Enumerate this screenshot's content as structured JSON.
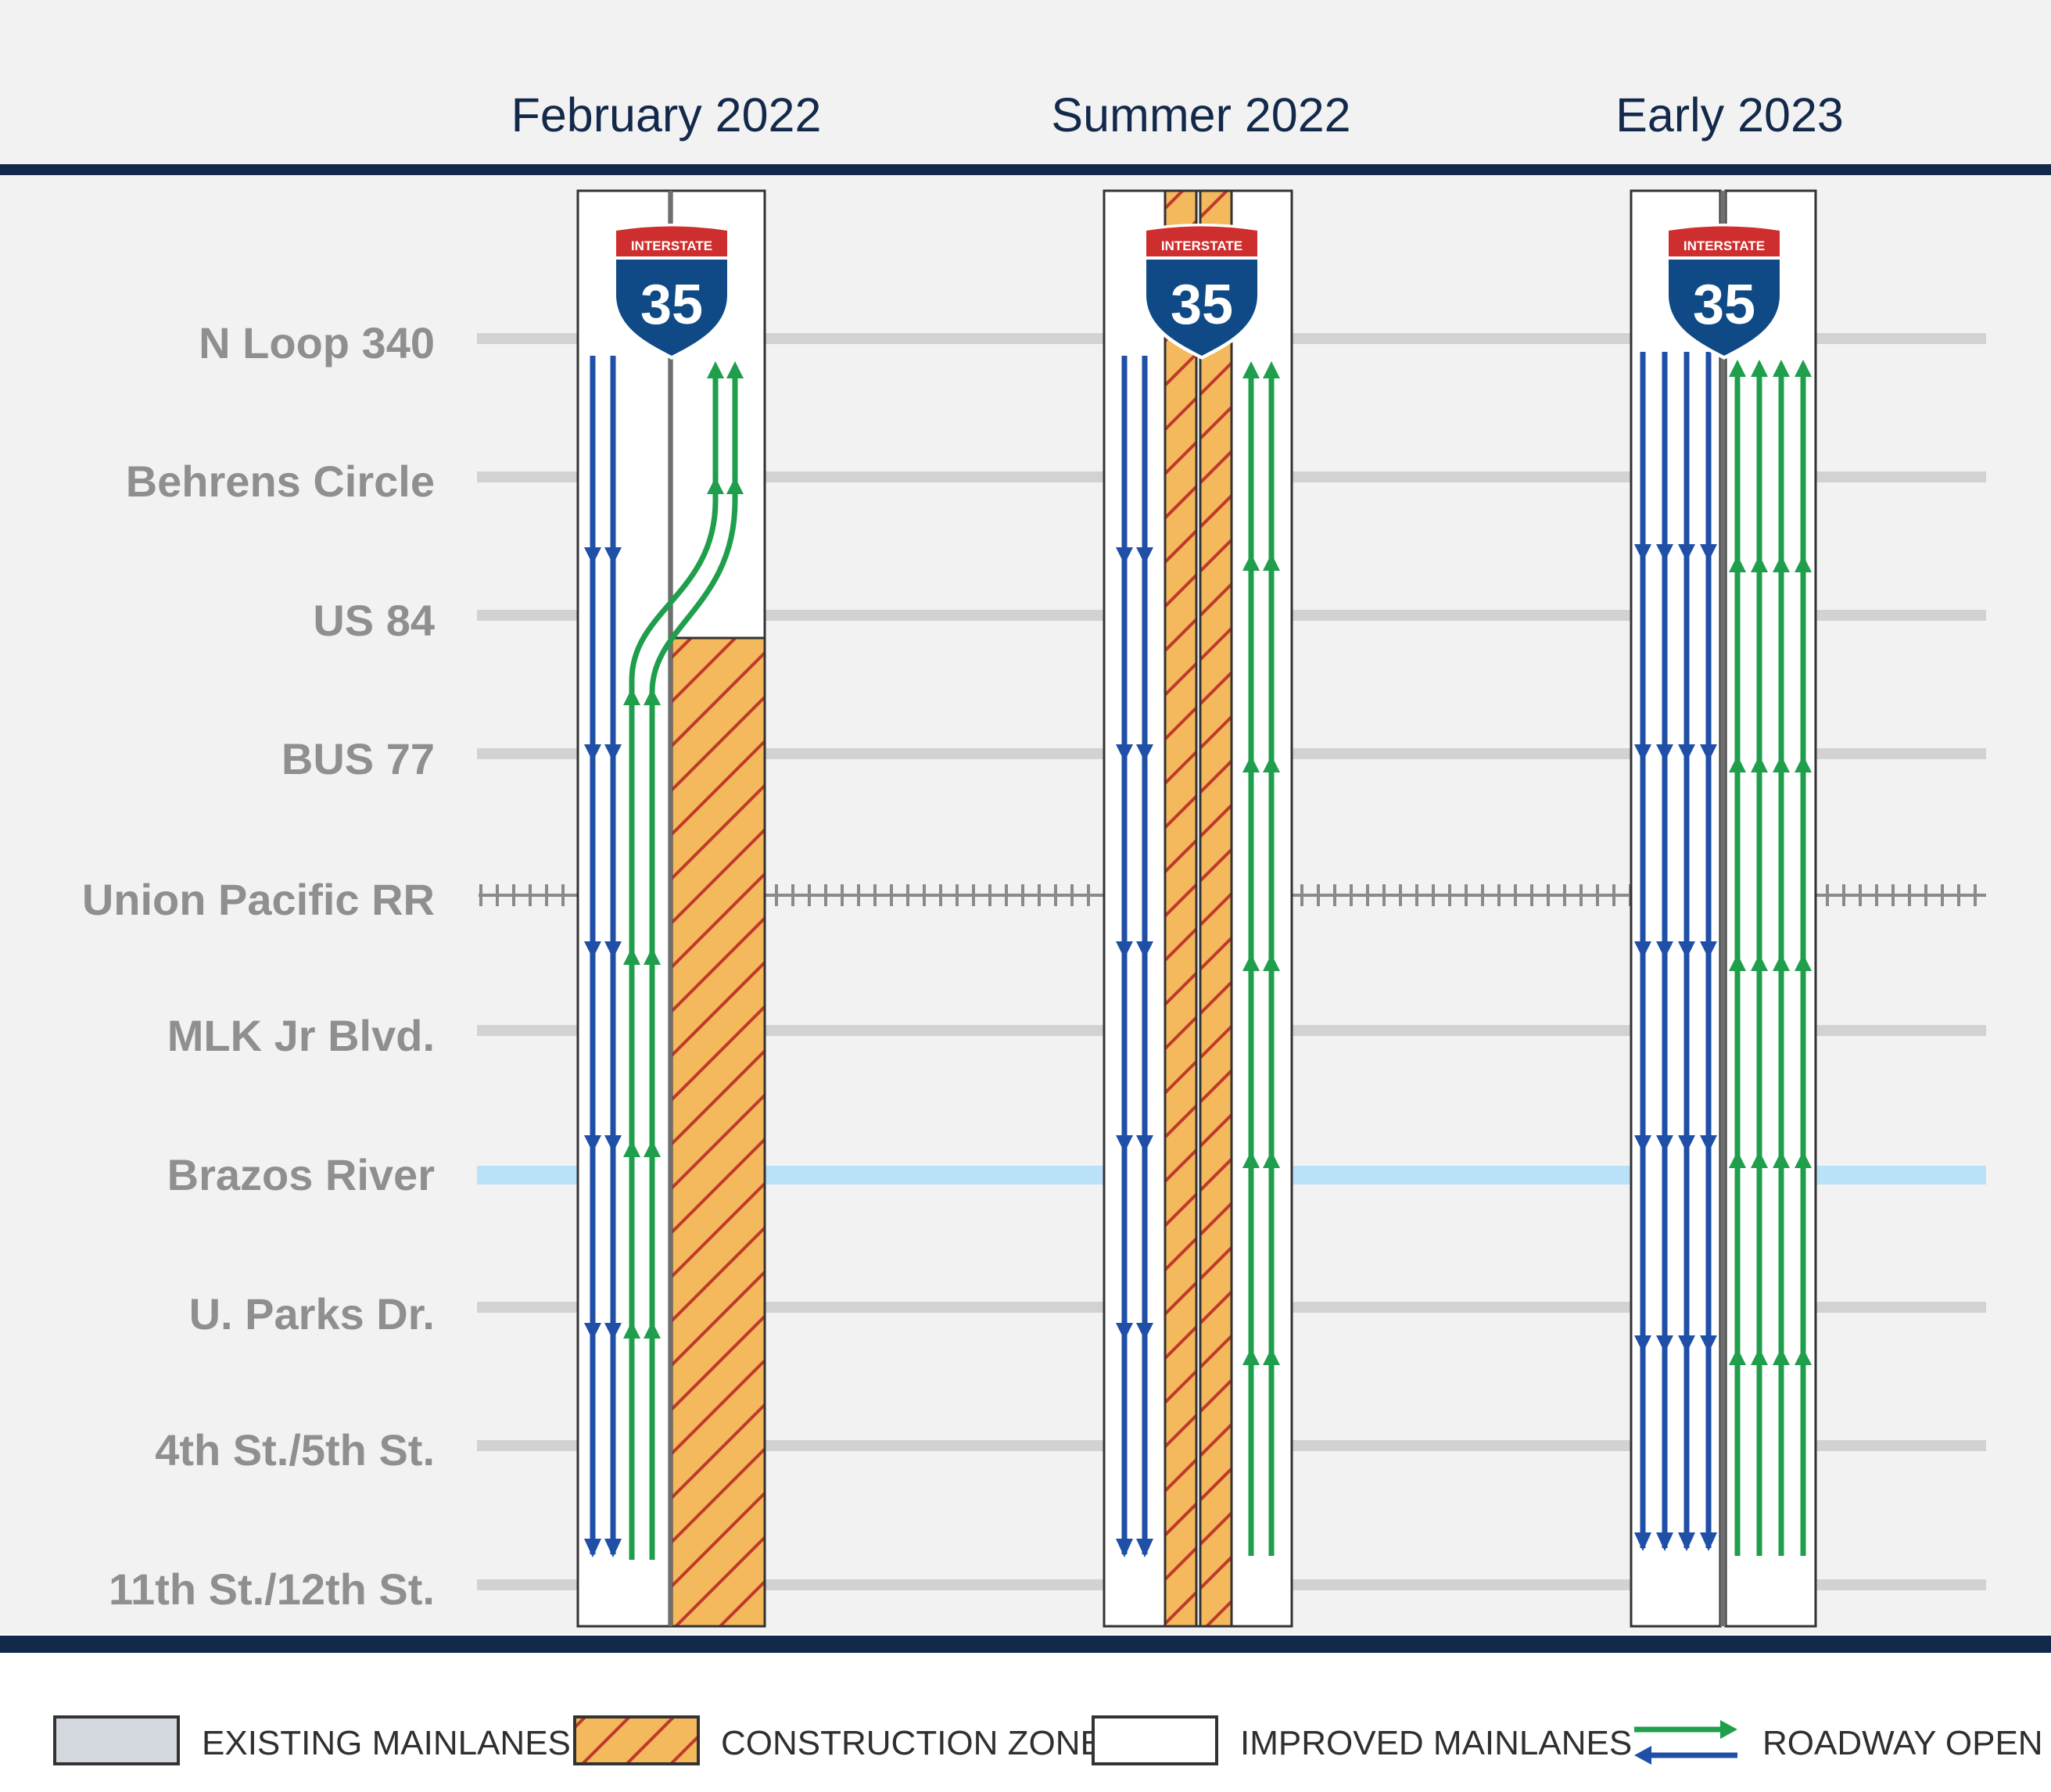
{
  "columns": [
    {
      "title": "February 2022"
    },
    {
      "title": "Summer 2022"
    },
    {
      "title": "Early 2023"
    }
  ],
  "locations": [
    "N Loop 340",
    "Behrens Circle",
    "US 84",
    "BUS 77",
    "Union Pacific RR",
    "MLK Jr Blvd.",
    "Brazos River",
    "U. Parks Dr.",
    "4th St./5th St.",
    "11th St./12th St."
  ],
  "shield": {
    "top": "INTERSTATE",
    "number": "35"
  },
  "legend": [
    {
      "label": "EXISTING MAINLANES",
      "type": "existing"
    },
    {
      "label": "CONSTRUCTION ZONE",
      "type": "construction"
    },
    {
      "label": "IMPROVED MAINLANES",
      "type": "improved"
    },
    {
      "label": "ROADWAY OPEN",
      "type": "open"
    }
  ],
  "colors": {
    "navy": "#13294b",
    "southbound": "#1f4fa6",
    "northbound": "#1f9e4c",
    "construction_fill": "#f4b95c",
    "construction_hatch": "#c0392b",
    "river": "#b9e2f8",
    "cross_street": "#d2d2d2",
    "existing": "#d3d7de",
    "shield_red": "#cf2e2e",
    "shield_blue": "#0f4a86"
  }
}
